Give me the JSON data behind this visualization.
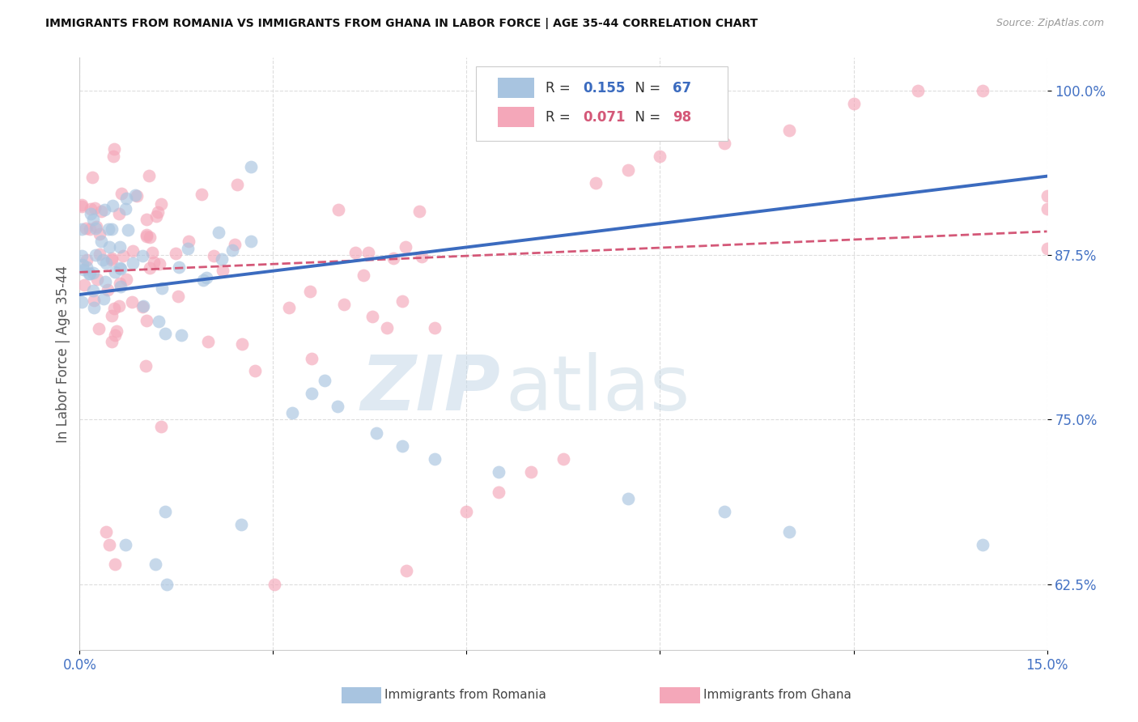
{
  "title": "IMMIGRANTS FROM ROMANIA VS IMMIGRANTS FROM GHANA IN LABOR FORCE | AGE 35-44 CORRELATION CHART",
  "source": "Source: ZipAtlas.com",
  "xlabel_romania": "Immigrants from Romania",
  "xlabel_ghana": "Immigrants from Ghana",
  "ylabel": "In Labor Force | Age 35-44",
  "xlim": [
    0.0,
    0.15
  ],
  "ylim": [
    0.575,
    1.025
  ],
  "r_romania": 0.155,
  "n_romania": 67,
  "r_ghana": 0.071,
  "n_ghana": 98,
  "color_romania": "#a8c4e0",
  "color_ghana": "#f4a7b9",
  "line_color_romania": "#3b6bbf",
  "line_color_ghana": "#d45878",
  "rom_line_x0": 0.0,
  "rom_line_y0": 0.845,
  "rom_line_x1": 0.15,
  "rom_line_y1": 0.935,
  "gha_line_x0": 0.0,
  "gha_line_y0": 0.862,
  "gha_line_x1": 0.15,
  "gha_line_y1": 0.893,
  "watermark_zip_color": "#c8d8e8",
  "watermark_atlas_color": "#b0ccd8",
  "background_color": "#ffffff",
  "grid_color": "#dddddd",
  "tick_color": "#4472c4",
  "ylabel_color": "#555555",
  "title_color": "#111111",
  "source_color": "#999999"
}
